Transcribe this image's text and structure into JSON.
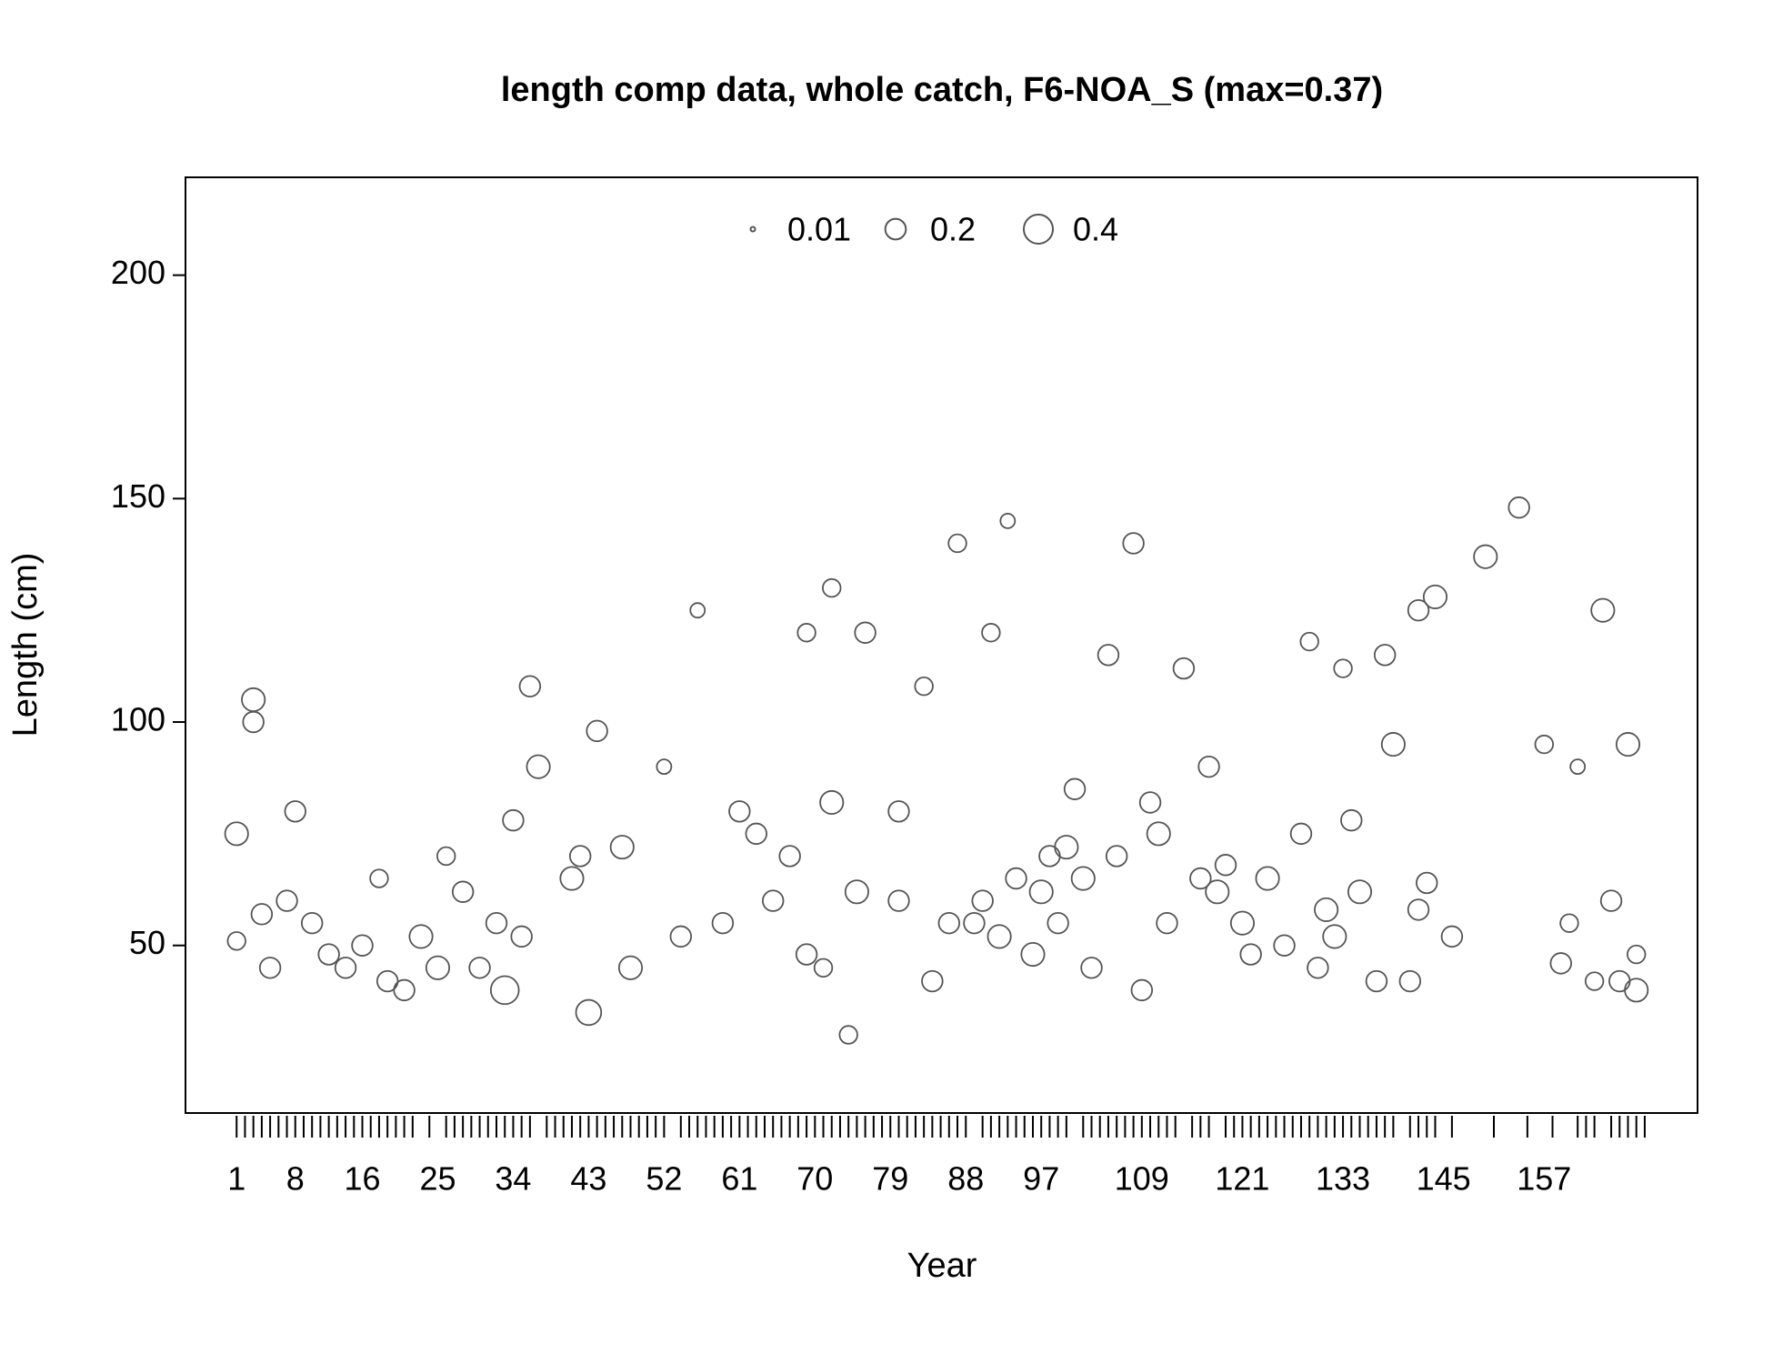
{
  "chart_data": {
    "type": "bubble",
    "title": "length comp data, whole catch, F6-NOA_S (max=0.37)",
    "x_label": "Year",
    "y_label": "Length (cm)",
    "xlim": [
      -5.1,
      175.3
    ],
    "ylim": [
      12.5,
      221.9
    ],
    "xticks": [
      1,
      8,
      16,
      25,
      34,
      43,
      52,
      61,
      70,
      79,
      88,
      97,
      109,
      121,
      133,
      145,
      157
    ],
    "xtick_marks": [
      1,
      2,
      3,
      4,
      5,
      6,
      7,
      8,
      9,
      10,
      11,
      12,
      13,
      14,
      15,
      16,
      17,
      18,
      19,
      20,
      21,
      22,
      24,
      26,
      27,
      28,
      29,
      30,
      31,
      32,
      33,
      34,
      35,
      36,
      38,
      39,
      40,
      41,
      42,
      43,
      44,
      45,
      46,
      47,
      48,
      49,
      50,
      51,
      52,
      54,
      55,
      56,
      57,
      58,
      59,
      60,
      61,
      62,
      63,
      64,
      65,
      66,
      67,
      68,
      69,
      70,
      71,
      72,
      73,
      74,
      75,
      76,
      77,
      78,
      79,
      80,
      81,
      82,
      83,
      84,
      85,
      86,
      87,
      88,
      90,
      91,
      92,
      93,
      94,
      95,
      96,
      97,
      98,
      99,
      100,
      102,
      103,
      104,
      105,
      106,
      107,
      108,
      109,
      110,
      111,
      112,
      113,
      115,
      116,
      117,
      119,
      120,
      121,
      122,
      123,
      124,
      125,
      126,
      127,
      128,
      129,
      130,
      131,
      132,
      133,
      134,
      135,
      136,
      137,
      138,
      139,
      141,
      142,
      143,
      144,
      146,
      151,
      155,
      158,
      161,
      162,
      163,
      165,
      166,
      167,
      168,
      169
    ],
    "yticks": [
      50,
      100,
      150,
      200
    ],
    "size_legend": [
      0.01,
      0.2,
      0.4
    ],
    "color": "#555555",
    "x": [
      1,
      1,
      3,
      3,
      4,
      5,
      7,
      8,
      10,
      12,
      14,
      16,
      18,
      19,
      21,
      23,
      25,
      26,
      28,
      30,
      32,
      33,
      34,
      35,
      36,
      37,
      41,
      42,
      43,
      44,
      47,
      48,
      52,
      54,
      56,
      59,
      61,
      63,
      65,
      67,
      69,
      71,
      72,
      69,
      72,
      74,
      75,
      76,
      80,
      80,
      83,
      84,
      86,
      87,
      89,
      90,
      91,
      92,
      93,
      94,
      96,
      97,
      98,
      99,
      100,
      101,
      102,
      103,
      105,
      106,
      108,
      109,
      110,
      111,
      112,
      114,
      116,
      117,
      118,
      119,
      121,
      122,
      124,
      126,
      128,
      129,
      130,
      131,
      132,
      133,
      134,
      135,
      137,
      138,
      139,
      141,
      142,
      142,
      143,
      144,
      146,
      150,
      154,
      157,
      159,
      160,
      161,
      163,
      164,
      165,
      166,
      167,
      168,
      168
    ],
    "y": [
      75,
      51,
      105,
      100,
      57,
      45,
      60,
      80,
      55,
      48,
      45,
      50,
      65,
      42,
      40,
      52,
      45,
      70,
      62,
      45,
      55,
      40,
      78,
      52,
      108,
      90,
      65,
      70,
      35,
      98,
      72,
      45,
      90,
      52,
      125,
      55,
      80,
      75,
      60,
      70,
      48,
      45,
      82,
      120,
      130,
      30,
      62,
      120,
      60,
      80,
      108,
      42,
      55,
      140,
      55,
      60,
      120,
      52,
      145,
      65,
      48,
      62,
      70,
      55,
      72,
      85,
      65,
      45,
      115,
      70,
      140,
      40,
      82,
      75,
      55,
      112,
      65,
      90,
      62,
      68,
      55,
      48,
      65,
      50,
      75,
      118,
      45,
      58,
      52,
      112,
      78,
      62,
      42,
      115,
      95,
      42,
      58,
      125,
      64,
      128,
      52,
      137,
      148,
      95,
      46,
      55,
      90,
      42,
      125,
      60,
      42,
      95,
      40,
      48
    ],
    "size": [
      0.25,
      0.15,
      0.25,
      0.2,
      0.2,
      0.2,
      0.2,
      0.2,
      0.2,
      0.2,
      0.2,
      0.2,
      0.15,
      0.2,
      0.2,
      0.25,
      0.25,
      0.15,
      0.2,
      0.2,
      0.2,
      0.37,
      0.2,
      0.2,
      0.2,
      0.25,
      0.25,
      0.2,
      0.3,
      0.2,
      0.25,
      0.25,
      0.1,
      0.2,
      0.1,
      0.2,
      0.2,
      0.2,
      0.2,
      0.2,
      0.2,
      0.15,
      0.25,
      0.15,
      0.15,
      0.15,
      0.25,
      0.2,
      0.2,
      0.2,
      0.15,
      0.2,
      0.2,
      0.15,
      0.2,
      0.2,
      0.15,
      0.25,
      0.1,
      0.2,
      0.25,
      0.25,
      0.2,
      0.2,
      0.25,
      0.2,
      0.25,
      0.2,
      0.2,
      0.2,
      0.2,
      0.2,
      0.2,
      0.25,
      0.2,
      0.2,
      0.2,
      0.2,
      0.25,
      0.2,
      0.25,
      0.2,
      0.25,
      0.2,
      0.2,
      0.15,
      0.2,
      0.25,
      0.25,
      0.15,
      0.2,
      0.25,
      0.2,
      0.2,
      0.25,
      0.2,
      0.2,
      0.2,
      0.2,
      0.25,
      0.2,
      0.25,
      0.2,
      0.15,
      0.2,
      0.15,
      0.1,
      0.15,
      0.25,
      0.2,
      0.2,
      0.25,
      0.25,
      0.15
    ]
  }
}
